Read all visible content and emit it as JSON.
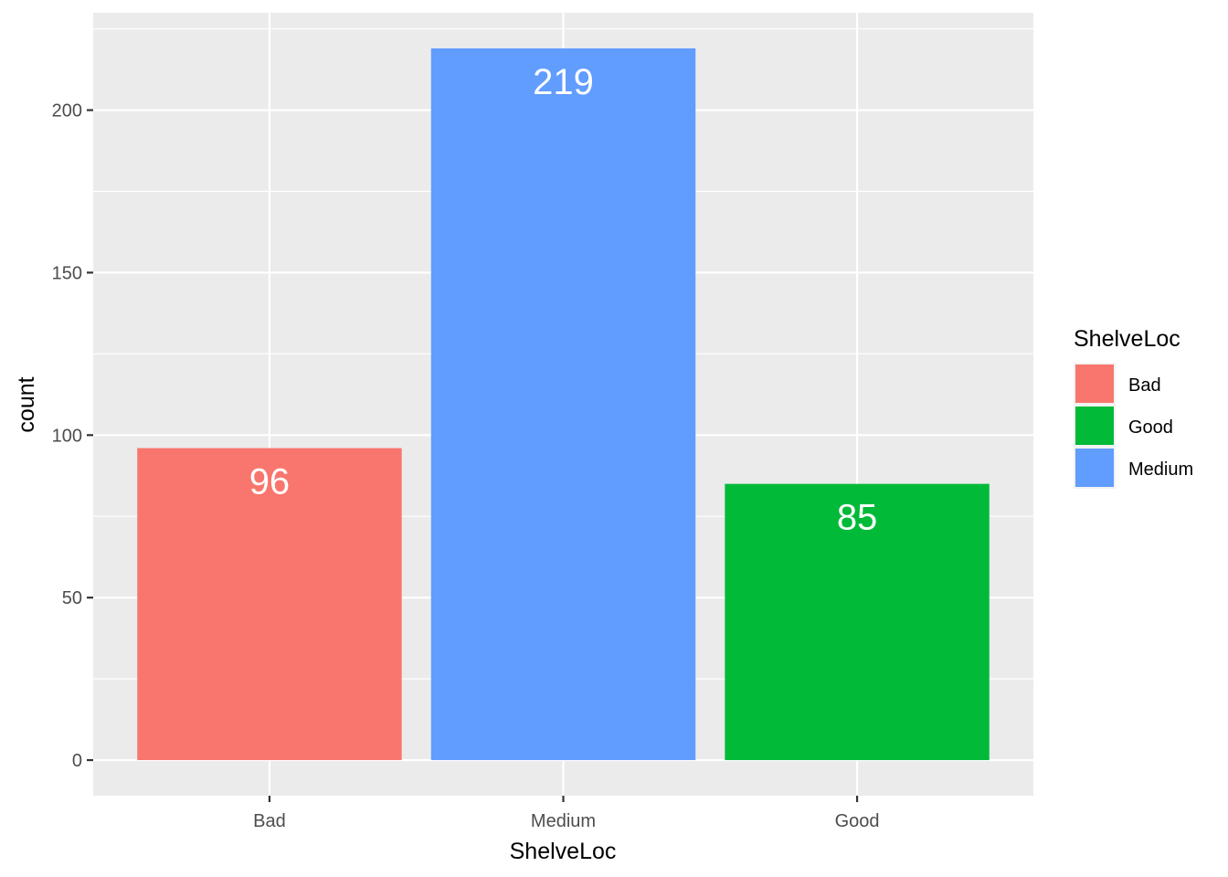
{
  "chart_data": {
    "type": "bar",
    "categories": [
      "Bad",
      "Medium",
      "Good"
    ],
    "values": [
      96,
      219,
      85
    ],
    "data_labels": [
      "96",
      "219",
      "85"
    ],
    "xlabel": "ShelveLoc",
    "ylabel": "count",
    "ylim": [
      -10.95,
      229.95
    ],
    "yticks": [
      0,
      50,
      100,
      150,
      200
    ],
    "ytick_labels": [
      "0",
      "50",
      "100",
      "150",
      "200"
    ],
    "bar_colors": [
      "#F8766D",
      "#619CFF",
      "#00BA38"
    ],
    "grid": true,
    "panel_background": "#EBEBEB",
    "legend": {
      "title": "ShelveLoc",
      "placement": "right",
      "entries": [
        {
          "label": "Bad",
          "color": "#F8766D"
        },
        {
          "label": "Good",
          "color": "#00BA38"
        },
        {
          "label": "Medium",
          "color": "#619CFF"
        }
      ]
    }
  }
}
